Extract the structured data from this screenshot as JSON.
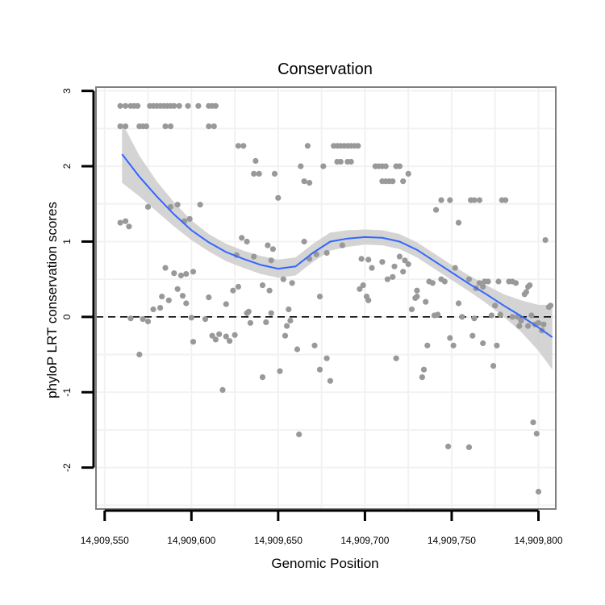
{
  "chart_data": {
    "type": "scatter",
    "title": "Conservation",
    "xlabel": "Genomic Position",
    "ylabel": "phyloP LRT conservation scores",
    "xlim": [
      14909545,
      14909810
    ],
    "ylim": [
      -2.55,
      3.05
    ],
    "x_ticks": [
      14909550,
      14909600,
      14909650,
      14909700,
      14909750,
      14909800
    ],
    "x_tick_labels": [
      "14,909,550",
      "14,909,600",
      "14,909,650",
      "14,909,700",
      "14,909,750",
      "14,909,800"
    ],
    "y_ticks": [
      -2,
      -1,
      0,
      1,
      2,
      3
    ],
    "y_tick_labels": [
      "-2",
      "-1",
      "0",
      "1",
      "2",
      "3"
    ],
    "reference_line": {
      "y": 0,
      "style": "dashed"
    },
    "grid": true,
    "colors": {
      "points": "#999999",
      "smooth_line": "#3366ff",
      "confidence_band": "#cccccc",
      "panel_border": "#7f7f7f",
      "grid": "#f2f2f2"
    },
    "series": [
      {
        "name": "phyloP scores",
        "points": [
          [
            14909559,
            2.8
          ],
          [
            14909562,
            2.8
          ],
          [
            14909565,
            2.8
          ],
          [
            14909567,
            2.8
          ],
          [
            14909569,
            2.8
          ],
          [
            14909576,
            2.8
          ],
          [
            14909578,
            2.8
          ],
          [
            14909580,
            2.8
          ],
          [
            14909582,
            2.8
          ],
          [
            14909584,
            2.8
          ],
          [
            14909586,
            2.8
          ],
          [
            14909588,
            2.8
          ],
          [
            14909590,
            2.8
          ],
          [
            14909593,
            2.8
          ],
          [
            14909598,
            2.8
          ],
          [
            14909604,
            2.8
          ],
          [
            14909610,
            2.8
          ],
          [
            14909612,
            2.8
          ],
          [
            14909614,
            2.8
          ],
          [
            14909559,
            2.53
          ],
          [
            14909562,
            2.53
          ],
          [
            14909570,
            2.53
          ],
          [
            14909572,
            2.53
          ],
          [
            14909574,
            2.53
          ],
          [
            14909585,
            2.53
          ],
          [
            14909588,
            2.53
          ],
          [
            14909610,
            2.53
          ],
          [
            14909613,
            2.53
          ],
          [
            14909559,
            1.25
          ],
          [
            14909562,
            1.27
          ],
          [
            14909564,
            1.2
          ],
          [
            14909575,
            1.46
          ],
          [
            14909588,
            1.46
          ],
          [
            14909592,
            1.49
          ],
          [
            14909596,
            1.27
          ],
          [
            14909599,
            1.3
          ],
          [
            14909605,
            1.49
          ],
          [
            14909590,
            0.58
          ],
          [
            14909594,
            0.55
          ],
          [
            14909597,
            0.57
          ],
          [
            14909601,
            0.6
          ],
          [
            14909585,
            0.65
          ],
          [
            14909583,
            0.27
          ],
          [
            14909587,
            0.22
          ],
          [
            14909592,
            0.37
          ],
          [
            14909595,
            0.28
          ],
          [
            14909597,
            0.18
          ],
          [
            14909610,
            0.26
          ],
          [
            14909565,
            -0.02
          ],
          [
            14909572,
            -0.03
          ],
          [
            14909575,
            -0.06
          ],
          [
            14909600,
            -0.01
          ],
          [
            14909570,
            -0.5
          ],
          [
            14909578,
            0.1
          ],
          [
            14909582,
            0.12
          ],
          [
            14909601,
            -0.33
          ],
          [
            14909608,
            -0.03
          ],
          [
            14909612,
            -0.25
          ],
          [
            14909614,
            -0.3
          ],
          [
            14909616,
            -0.23
          ],
          [
            14909620,
            -0.26
          ],
          [
            14909622,
            -0.32
          ],
          [
            14909618,
            -0.97
          ],
          [
            14909620,
            0.17
          ],
          [
            14909624,
            0.35
          ],
          [
            14909627,
            0.4
          ],
          [
            14909632,
            0.05
          ],
          [
            14909633,
            0.07
          ],
          [
            14909626,
            0.82
          ],
          [
            14909629,
            1.05
          ],
          [
            14909632,
            1.0
          ],
          [
            14909636,
            0.8
          ],
          [
            14909634,
            -0.08
          ],
          [
            14909625,
            -0.24
          ],
          [
            14909627,
            2.27
          ],
          [
            14909630,
            2.27
          ],
          [
            14909637,
            2.07
          ],
          [
            14909636,
            1.9
          ],
          [
            14909639,
            1.9
          ],
          [
            14909648,
            1.9
          ],
          [
            14909641,
            0.42
          ],
          [
            14909645,
            0.35
          ],
          [
            14909646,
            0.75
          ],
          [
            14909644,
            0.95
          ],
          [
            14909647,
            0.9
          ],
          [
            14909643,
            -0.07
          ],
          [
            14909641,
            -0.8
          ],
          [
            14909646,
            0.05
          ],
          [
            14909650,
            1.58
          ],
          [
            14909653,
            0.5
          ],
          [
            14909655,
            -0.12
          ],
          [
            14909657,
            -0.05
          ],
          [
            14909656,
            0.1
          ],
          [
            14909651,
            -0.72
          ],
          [
            14909654,
            -0.25
          ],
          [
            14909658,
            0.45
          ],
          [
            14909661,
            -0.43
          ],
          [
            14909663,
            2.0
          ],
          [
            14909665,
            1.8
          ],
          [
            14909662,
            -1.56
          ],
          [
            14909665,
            1.0
          ],
          [
            14909667,
            2.27
          ],
          [
            14909668,
            0.77
          ],
          [
            14909671,
            -0.38
          ],
          [
            14909672,
            0.83
          ],
          [
            14909674,
            0.27
          ],
          [
            14909676,
            2.0
          ],
          [
            14909678,
            0.85
          ],
          [
            14909680,
            -0.85
          ],
          [
            14909678,
            -0.55
          ],
          [
            14909674,
            -0.7
          ],
          [
            14909668,
            1.78
          ],
          [
            14909682,
            2.27
          ],
          [
            14909684,
            2.27
          ],
          [
            14909686,
            2.27
          ],
          [
            14909688,
            2.27
          ],
          [
            14909690,
            2.27
          ],
          [
            14909692,
            2.27
          ],
          [
            14909694,
            2.27
          ],
          [
            14909696,
            2.27
          ],
          [
            14909684,
            2.06
          ],
          [
            14909686,
            2.06
          ],
          [
            14909690,
            2.06
          ],
          [
            14909692,
            2.06
          ],
          [
            14909687,
            0.95
          ],
          [
            14909697,
            0.37
          ],
          [
            14909699,
            0.42
          ],
          [
            14909701,
            0.27
          ],
          [
            14909702,
            0.22
          ],
          [
            14909698,
            0.77
          ],
          [
            14909704,
            0.65
          ],
          [
            14909702,
            0.76
          ],
          [
            14909706,
            2.0
          ],
          [
            14909708,
            2.0
          ],
          [
            14909710,
            2.0
          ],
          [
            14909712,
            2.0
          ],
          [
            14909714,
            1.8
          ],
          [
            14909716,
            1.8
          ],
          [
            14909718,
            2.0
          ],
          [
            14909720,
            2.0
          ],
          [
            14909722,
            1.8
          ],
          [
            14909710,
            1.8
          ],
          [
            14909712,
            1.8
          ],
          [
            14909710,
            0.73
          ],
          [
            14909713,
            0.5
          ],
          [
            14909716,
            0.53
          ],
          [
            14909717,
            0.67
          ],
          [
            14909720,
            0.8
          ],
          [
            14909722,
            0.6
          ],
          [
            14909723,
            0.75
          ],
          [
            14909725,
            0.7
          ],
          [
            14909725,
            1.9
          ],
          [
            14909718,
            -0.55
          ],
          [
            14909727,
            0.1
          ],
          [
            14909729,
            0.25
          ],
          [
            14909730,
            0.35
          ],
          [
            14909733,
            -0.8
          ],
          [
            14909734,
            -0.7
          ],
          [
            14909735,
            0.2
          ],
          [
            14909736,
            -0.38
          ],
          [
            14909730,
            0.27
          ],
          [
            14909737,
            0.47
          ],
          [
            14909739,
            0.45
          ],
          [
            14909740,
            0.02
          ],
          [
            14909742,
            0.03
          ],
          [
            14909744,
            0.5
          ],
          [
            14909741,
            1.42
          ],
          [
            14909744,
            1.55
          ],
          [
            14909749,
            1.55
          ],
          [
            14909746,
            0.47
          ],
          [
            14909748,
            -1.72
          ],
          [
            14909749,
            -0.28
          ],
          [
            14909751,
            -0.38
          ],
          [
            14909752,
            0.65
          ],
          [
            14909754,
            0.18
          ],
          [
            14909754,
            1.25
          ],
          [
            14909756,
            0.0
          ],
          [
            14909760,
            0.5
          ],
          [
            14909760,
            -1.73
          ],
          [
            14909762,
            -0.25
          ],
          [
            14909763,
            -0.02
          ],
          [
            14909764,
            0.38
          ],
          [
            14909766,
            0.45
          ],
          [
            14909768,
            0.4
          ],
          [
            14909761,
            1.55
          ],
          [
            14909763,
            1.55
          ],
          [
            14909766,
            1.55
          ],
          [
            14909768,
            -0.35
          ],
          [
            14909769,
            0.47
          ],
          [
            14909771,
            0.47
          ],
          [
            14909773,
            0.02
          ],
          [
            14909774,
            -0.65
          ],
          [
            14909775,
            0.15
          ],
          [
            14909776,
            -0.38
          ],
          [
            14909777,
            0.47
          ],
          [
            14909778,
            0.03
          ],
          [
            14909779,
            1.55
          ],
          [
            14909781,
            1.55
          ],
          [
            14909783,
            0.47
          ],
          [
            14909785,
            0.47
          ],
          [
            14909787,
            0.45
          ],
          [
            14909788,
            0.0
          ],
          [
            14909789,
            -0.12
          ],
          [
            14909790,
            -0.05
          ],
          [
            14909785,
            0.0
          ],
          [
            14909792,
            0.3
          ],
          [
            14909794,
            0.4
          ],
          [
            14909795,
            0.42
          ],
          [
            14909796,
            0.02
          ],
          [
            14909794,
            -0.12
          ],
          [
            14909798,
            -0.1
          ],
          [
            14909800,
            -0.08
          ],
          [
            14909802,
            -0.18
          ],
          [
            14909803,
            -0.1
          ],
          [
            14909797,
            -1.4
          ],
          [
            14909799,
            -1.55
          ],
          [
            14909800,
            -2.32
          ],
          [
            14909804,
            1.02
          ],
          [
            14909806,
            0.13
          ],
          [
            14909807,
            0.15
          ],
          [
            14909793,
            0.33
          ]
        ]
      },
      {
        "name": "loess fit",
        "type": "line",
        "x": [
          14909560,
          14909570,
          14909580,
          14909590,
          14909600,
          14909610,
          14909620,
          14909630,
          14909640,
          14909650,
          14909660,
          14909670,
          14909680,
          14909690,
          14909700,
          14909710,
          14909720,
          14909730,
          14909740,
          14909750,
          14909760,
          14909770,
          14909780,
          14909790,
          14909800,
          14909808
        ],
        "y": [
          2.16,
          1.86,
          1.6,
          1.36,
          1.15,
          0.99,
          0.86,
          0.77,
          0.69,
          0.64,
          0.67,
          0.85,
          1.0,
          1.04,
          1.06,
          1.05,
          1.0,
          0.89,
          0.74,
          0.59,
          0.44,
          0.3,
          0.15,
          0.01,
          -0.14,
          -0.27
        ],
        "lower": [
          1.78,
          1.6,
          1.4,
          1.2,
          1.02,
          0.87,
          0.74,
          0.65,
          0.57,
          0.52,
          0.55,
          0.73,
          0.88,
          0.93,
          0.96,
          0.95,
          0.9,
          0.79,
          0.64,
          0.49,
          0.34,
          0.18,
          0.0,
          -0.2,
          -0.45,
          -0.7
        ],
        "upper": [
          2.58,
          2.14,
          1.8,
          1.52,
          1.28,
          1.1,
          0.97,
          0.88,
          0.81,
          0.76,
          0.79,
          0.97,
          1.12,
          1.15,
          1.16,
          1.15,
          1.1,
          0.99,
          0.84,
          0.69,
          0.55,
          0.42,
          0.3,
          0.22,
          0.16,
          0.16
        ]
      }
    ]
  }
}
